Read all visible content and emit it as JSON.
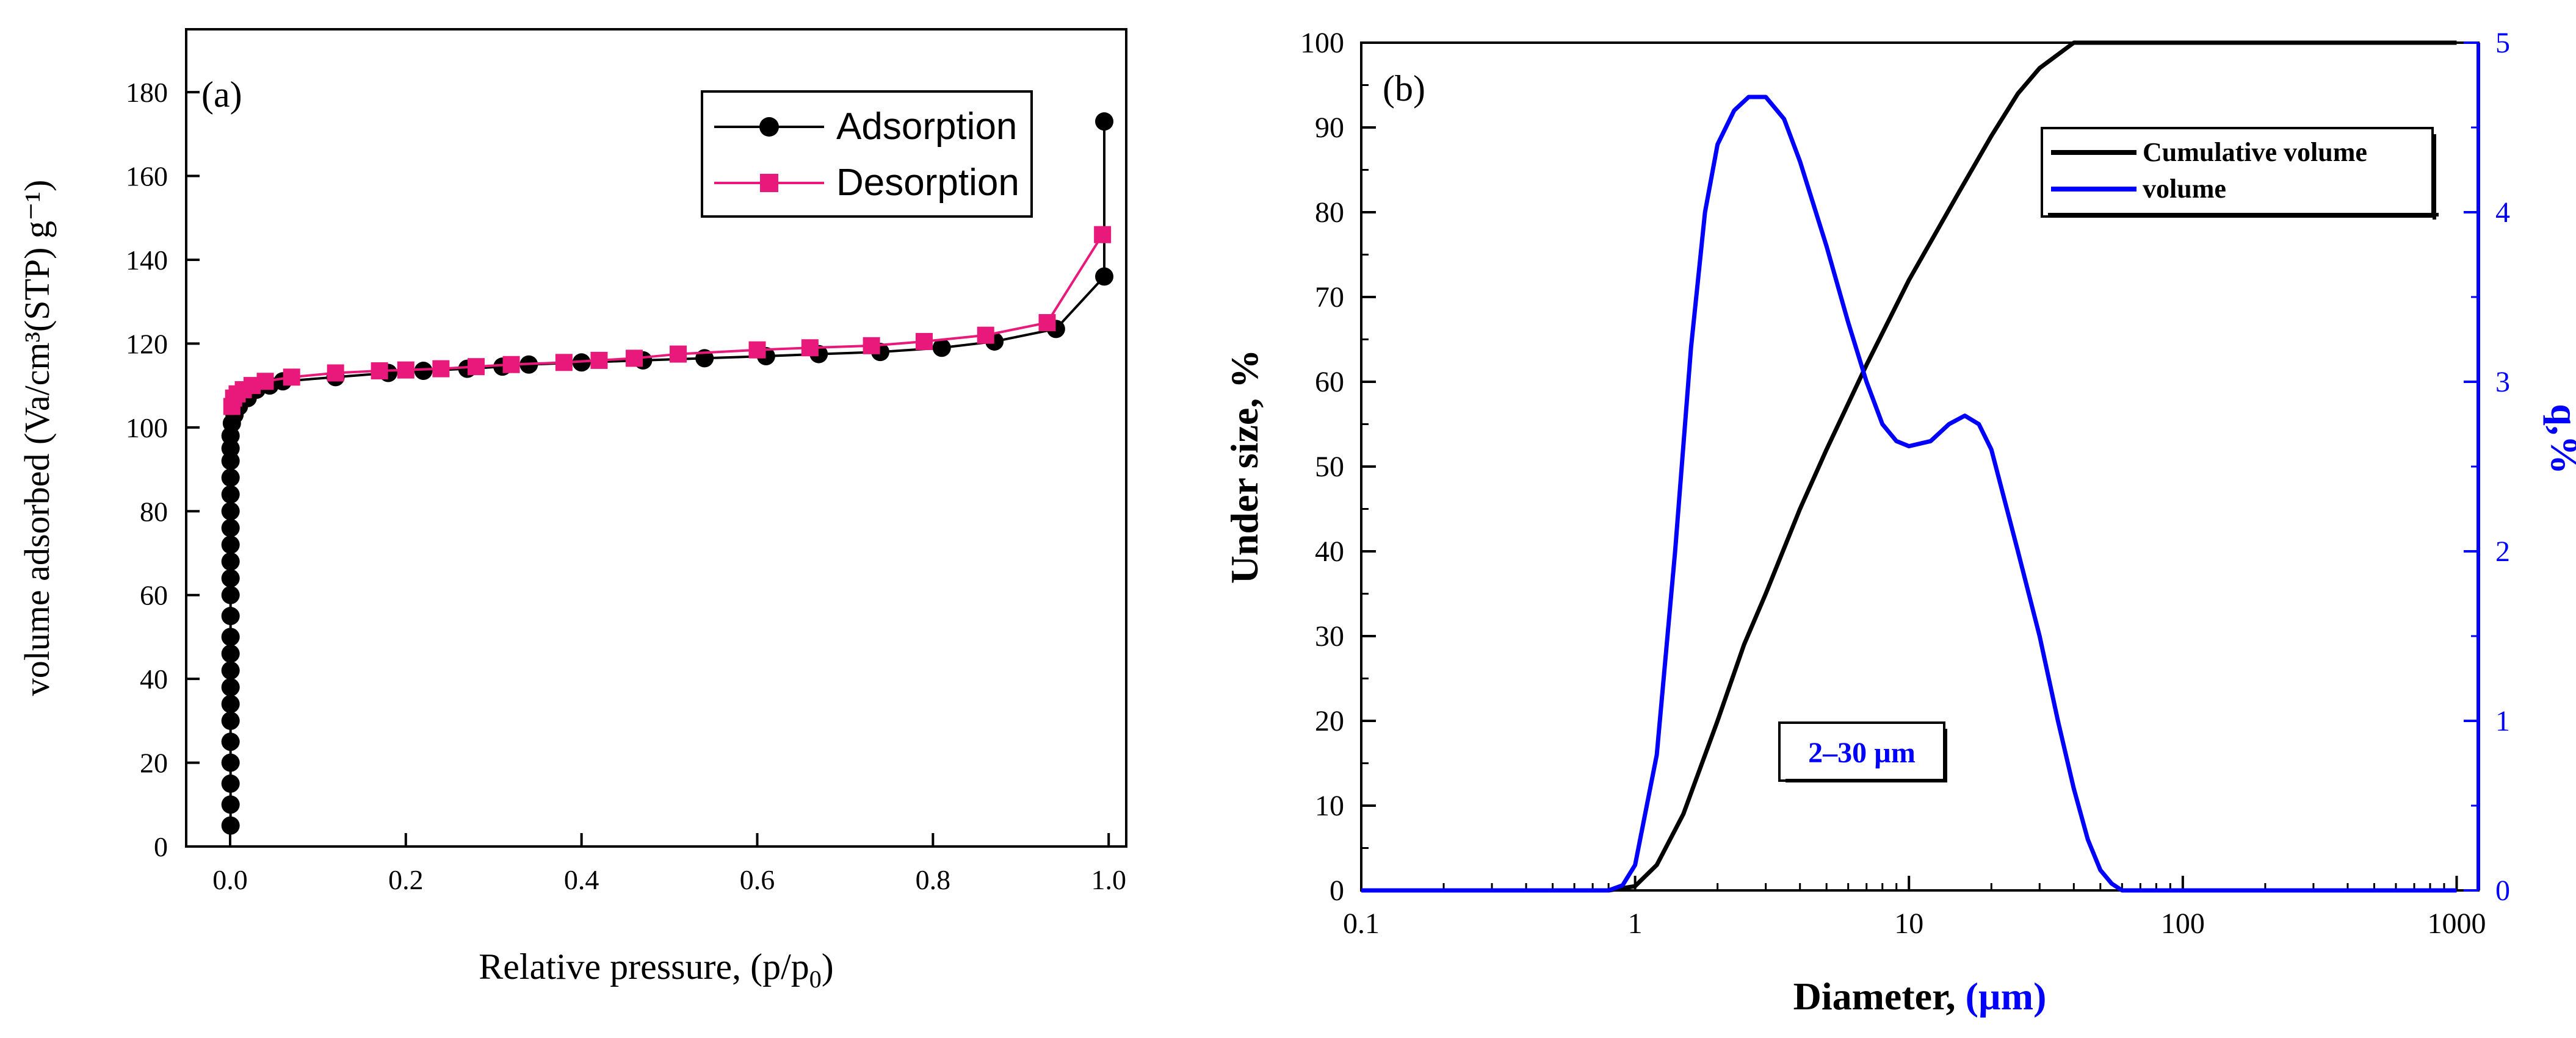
{
  "chart_data": [
    {
      "id": "a",
      "type": "scatter",
      "panel_label": "(a)",
      "xlabel_main": "Relative pressure, (p/p",
      "xlabel_sub": "0",
      "xlabel_close": ")",
      "ylabel": "volume adsorbed (Va/cm³(STP) g⁻¹)",
      "xlim": [
        -0.05,
        1.02
      ],
      "ylim": [
        0,
        195
      ],
      "xticks": [
        0.0,
        0.2,
        0.4,
        0.6,
        0.8,
        1.0
      ],
      "xtick_labels": [
        "0.0",
        "0.2",
        "0.4",
        "0.6",
        "0.8",
        "1.0"
      ],
      "yticks": [
        0,
        20,
        40,
        60,
        80,
        100,
        120,
        140,
        160,
        180
      ],
      "ytick_labels": [
        "0",
        "20",
        "40",
        "60",
        "80",
        "100",
        "120",
        "140",
        "160",
        "180"
      ],
      "legend_position": "top-right",
      "series": [
        {
          "name": "Adsorption",
          "color": "#000000",
          "marker": "circle",
          "x": [
            0.0005,
            0.0005,
            0.0005,
            0.0005,
            0.0005,
            0.0005,
            0.0005,
            0.0005,
            0.0005,
            0.0005,
            0.0005,
            0.0005,
            0.0005,
            0.0005,
            0.0005,
            0.0005,
            0.0005,
            0.0005,
            0.0005,
            0.0005,
            0.0005,
            0.0005,
            0.0005,
            0.002,
            0.005,
            0.01,
            0.02,
            0.03,
            0.045,
            0.06,
            0.12,
            0.18,
            0.22,
            0.27,
            0.31,
            0.34,
            0.4,
            0.47,
            0.54,
            0.61,
            0.67,
            0.74,
            0.81,
            0.87,
            0.94,
            0.995,
            0.995
          ],
          "y": [
            5,
            10,
            15,
            20,
            25,
            30,
            34,
            38,
            42,
            46,
            50,
            55,
            60,
            64,
            68,
            72,
            76,
            80,
            84,
            88,
            92,
            95,
            98,
            101,
            103,
            105,
            107,
            109,
            110,
            111,
            112,
            113,
            113.5,
            114,
            114.5,
            115,
            115.5,
            116,
            116.5,
            117,
            117.5,
            118,
            119,
            120.5,
            123.5,
            136,
            173
          ]
        },
        {
          "name": "Desorption",
          "color": "#E8197A",
          "marker": "square",
          "x": [
            0.993,
            0.93,
            0.86,
            0.79,
            0.73,
            0.66,
            0.6,
            0.51,
            0.46,
            0.42,
            0.38,
            0.32,
            0.28,
            0.24,
            0.2,
            0.17,
            0.12,
            0.07,
            0.04,
            0.025,
            0.015,
            0.008,
            0.004,
            0.002
          ],
          "y": [
            146,
            125,
            122,
            120.5,
            119.5,
            119,
            118.5,
            117.5,
            116.5,
            116,
            115.5,
            115,
            114.5,
            114,
            113.7,
            113.5,
            113,
            112,
            111,
            110,
            109,
            108,
            107,
            105
          ]
        }
      ]
    },
    {
      "id": "b",
      "type": "line",
      "panel_label": "(b)",
      "xlabel_black": "Diameter, ",
      "xlabel_blue": "(µm)",
      "ylabel_left": "Under size, %",
      "ylabel_right": "q,%",
      "xscale": "log",
      "xlim": [
        0.1,
        1200
      ],
      "ylim_left": [
        0,
        100
      ],
      "ylim_right": [
        0,
        5
      ],
      "xticks": [
        0.1,
        1,
        10,
        100,
        1000
      ],
      "xtick_labels": [
        "0.1",
        "1",
        "10",
        "100",
        "1000"
      ],
      "yticks_left": [
        0,
        10,
        20,
        30,
        40,
        50,
        60,
        70,
        80,
        90,
        100
      ],
      "ytick_labels_left": [
        "0",
        "10",
        "20",
        "30",
        "40",
        "50",
        "60",
        "70",
        "80",
        "90",
        "100"
      ],
      "yticks_right": [
        0,
        1,
        2,
        3,
        4,
        5
      ],
      "ytick_labels_right": [
        "0",
        "1",
        "2",
        "3",
        "4",
        "5"
      ],
      "annotation": "2–30 µm",
      "legend_position": "top-right",
      "series": [
        {
          "name": "Cumulative volume",
          "color": "#000000",
          "axis": "left",
          "x": [
            0.1,
            0.8,
            1.0,
            1.2,
            1.5,
            2,
            2.5,
            3,
            4,
            5,
            7,
            10,
            15,
            20,
            25,
            30,
            40,
            60,
            100,
            1000
          ],
          "y": [
            0,
            0,
            0.5,
            3,
            9,
            20,
            29,
            35,
            45,
            52,
            62,
            72,
            82,
            89,
            94,
            97,
            100,
            100,
            100,
            100
          ]
        },
        {
          "name": "volume",
          "color": "#0000FF",
          "axis": "right",
          "x": [
            0.1,
            0.8,
            0.9,
            1.0,
            1.2,
            1.4,
            1.6,
            1.8,
            2.0,
            2.3,
            2.6,
            3.0,
            3.5,
            4,
            5,
            6,
            7,
            8,
            9,
            10,
            12,
            14,
            16,
            18,
            20,
            25,
            30,
            35,
            40,
            45,
            50,
            55,
            60,
            80,
            100,
            1000
          ],
          "y": [
            0,
            0,
            0.03,
            0.15,
            0.8,
            2.0,
            3.2,
            4.0,
            4.4,
            4.6,
            4.68,
            4.68,
            4.55,
            4.3,
            3.8,
            3.35,
            3.0,
            2.75,
            2.65,
            2.62,
            2.65,
            2.75,
            2.8,
            2.75,
            2.6,
            2.0,
            1.5,
            1.0,
            0.6,
            0.3,
            0.12,
            0.04,
            0,
            0,
            0,
            0
          ]
        }
      ]
    }
  ]
}
